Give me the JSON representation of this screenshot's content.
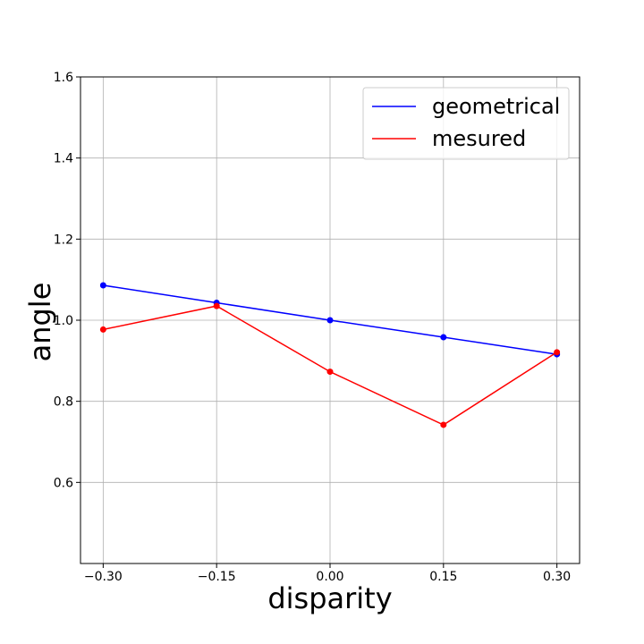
{
  "chart_data": {
    "type": "line",
    "xlabel": "disparity",
    "ylabel": "angle",
    "x": [
      -0.3,
      -0.15,
      0.0,
      0.15,
      0.3
    ],
    "xlim": [
      -0.33,
      0.33
    ],
    "ylim": [
      0.4,
      1.6
    ],
    "xticks": [
      "−0.30",
      "−0.15",
      "0.00",
      "0.15",
      "0.30"
    ],
    "xtick_values": [
      -0.3,
      -0.15,
      0.0,
      0.15,
      0.3
    ],
    "yticks": [
      "0.6",
      "0.8",
      "1.0",
      "1.2",
      "1.4",
      "1.6"
    ],
    "ytick_values": [
      0.6,
      0.8,
      1.0,
      1.2,
      1.4,
      1.6
    ],
    "grid": true,
    "legend_position": "top-right",
    "series": [
      {
        "name": "geometrical",
        "color": "#0000ff",
        "values": [
          1.086,
          1.043,
          1.0,
          0.958,
          0.916
        ]
      },
      {
        "name": "mesured",
        "color": "#ff0000",
        "values": [
          0.977,
          1.035,
          0.873,
          0.742,
          0.921
        ]
      }
    ]
  }
}
